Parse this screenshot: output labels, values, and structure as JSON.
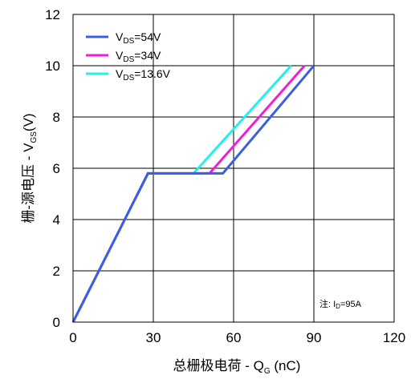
{
  "chart_data": {
    "type": "line",
    "xlabel": {
      "main": "总栅极电荷 - Q",
      "sub": "G",
      "tail": " (nC)"
    },
    "ylabel": {
      "main": "栅-源电压 - V",
      "sub": "GS",
      "tail": "(V)"
    },
    "xlim": [
      0,
      120
    ],
    "ylim": [
      0,
      12
    ],
    "xticks": [
      0,
      30,
      60,
      90,
      120
    ],
    "yticks": [
      0,
      2,
      4,
      6,
      8,
      10,
      12
    ],
    "grid": true,
    "legend_position": "top-left",
    "note": {
      "prefix": "注:  I",
      "sub": "D",
      "tail": "=95A"
    },
    "series": [
      {
        "name": {
          "main": "V",
          "sub": "DS",
          "tail": "=54V"
        },
        "color": "#3a5fe0",
        "x": [
          0,
          28,
          56,
          90
        ],
        "y": [
          0,
          5.8,
          5.8,
          10
        ]
      },
      {
        "name": {
          "main": "V",
          "sub": "DS",
          "tail": "=34V"
        },
        "color": "#f01ed8",
        "x": [
          0,
          28,
          51,
          86.5
        ],
        "y": [
          0,
          5.8,
          5.8,
          10
        ]
      },
      {
        "name": {
          "main": "V",
          "sub": "DS",
          "tail": "=13.6V"
        },
        "color": "#22f0ee",
        "x": [
          0,
          28,
          45,
          81.5
        ],
        "y": [
          0,
          5.8,
          5.8,
          10
        ]
      }
    ]
  }
}
